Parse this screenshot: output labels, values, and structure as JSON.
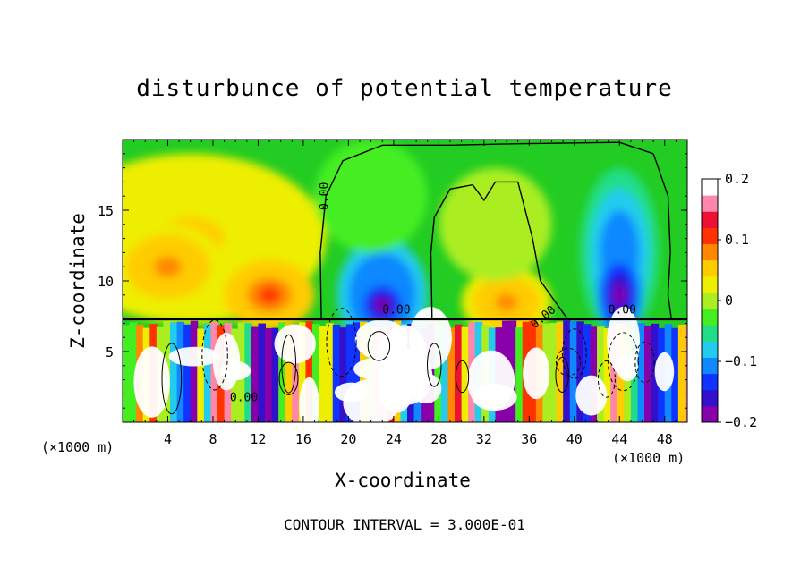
{
  "chart_data": {
    "type": "heatmap",
    "title": "disturbunce of potential temperature",
    "xlabel": "X-coordinate",
    "ylabel": "Z-coordinate",
    "x_unit": "(×1000 m)",
    "y_unit": "(×1000 m)",
    "footer": "CONTOUR INTERVAL = 3.000E-01",
    "xlim": [
      0,
      50
    ],
    "ylim": [
      0,
      20
    ],
    "x_ticks": [
      4,
      8,
      12,
      16,
      20,
      24,
      28,
      32,
      36,
      40,
      44,
      48
    ],
    "y_ticks": [
      5,
      10,
      15
    ],
    "colorbar": {
      "range": [
        -0.2,
        0.2
      ],
      "tick_labels": [
        "0.2",
        "0.1",
        "0",
        "−0.1",
        "−0.2"
      ],
      "tick_values": [
        0.2,
        0.1,
        0,
        -0.1,
        -0.2
      ]
    },
    "contour_labels": [
      "0.00",
      "0.00",
      "0.00",
      "0.00",
      "0.00"
    ]
  }
}
